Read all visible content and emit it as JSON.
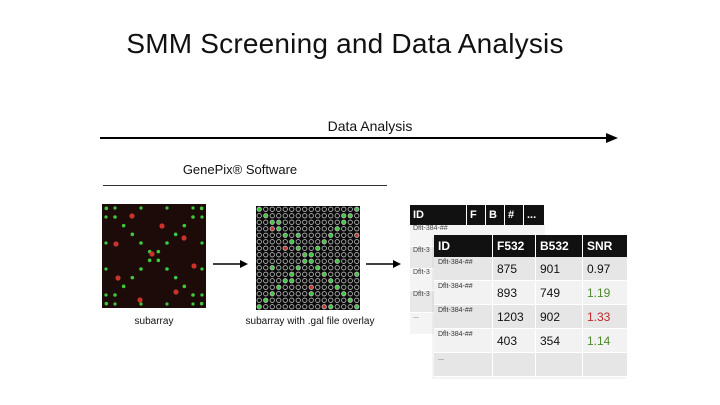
{
  "title": "SMM Screening and Data Analysis",
  "arrow_label": "Data Analysis",
  "software_label": "GenePix® Software",
  "captions": {
    "subarray": "subarray",
    "overlay": "subarray with .gal file overlay"
  },
  "colors": {
    "green_spot": "#3ec83e",
    "red_spot": "#c8342c",
    "snr_green": "#4e8a2c",
    "snr_red": "#c0282c",
    "header_bg": "#111111"
  },
  "back_table": {
    "headers": [
      "ID",
      "F",
      "B",
      "#",
      "..."
    ],
    "rows": [
      "Dflt-384-##",
      "Dflt-3",
      "Dflt-3",
      "Dflt-3",
      "..."
    ]
  },
  "front_table": {
    "headers": [
      "ID",
      "F532",
      "B532",
      "SNR"
    ],
    "rows": [
      {
        "id": "Dflt-384-##",
        "f532": "875",
        "b532": "901",
        "snr": "0.97",
        "snr_color": "#111111"
      },
      {
        "id": "Dflt-384-##",
        "f532": "893",
        "b532": "749",
        "snr": "1.19",
        "snr_color": "#4e8a2c"
      },
      {
        "id": "Dflt-384-##",
        "f532": "1203",
        "b532": "902",
        "snr": "1.33",
        "snr_color": "#c0282c"
      },
      {
        "id": "Dflt-384-##",
        "f532": "403",
        "b532": "354",
        "snr": "1.14",
        "snr_color": "#4e8a2c"
      },
      {
        "id": "...",
        "f532": "",
        "b532": "",
        "snr": "",
        "snr_color": "#111111"
      }
    ]
  }
}
